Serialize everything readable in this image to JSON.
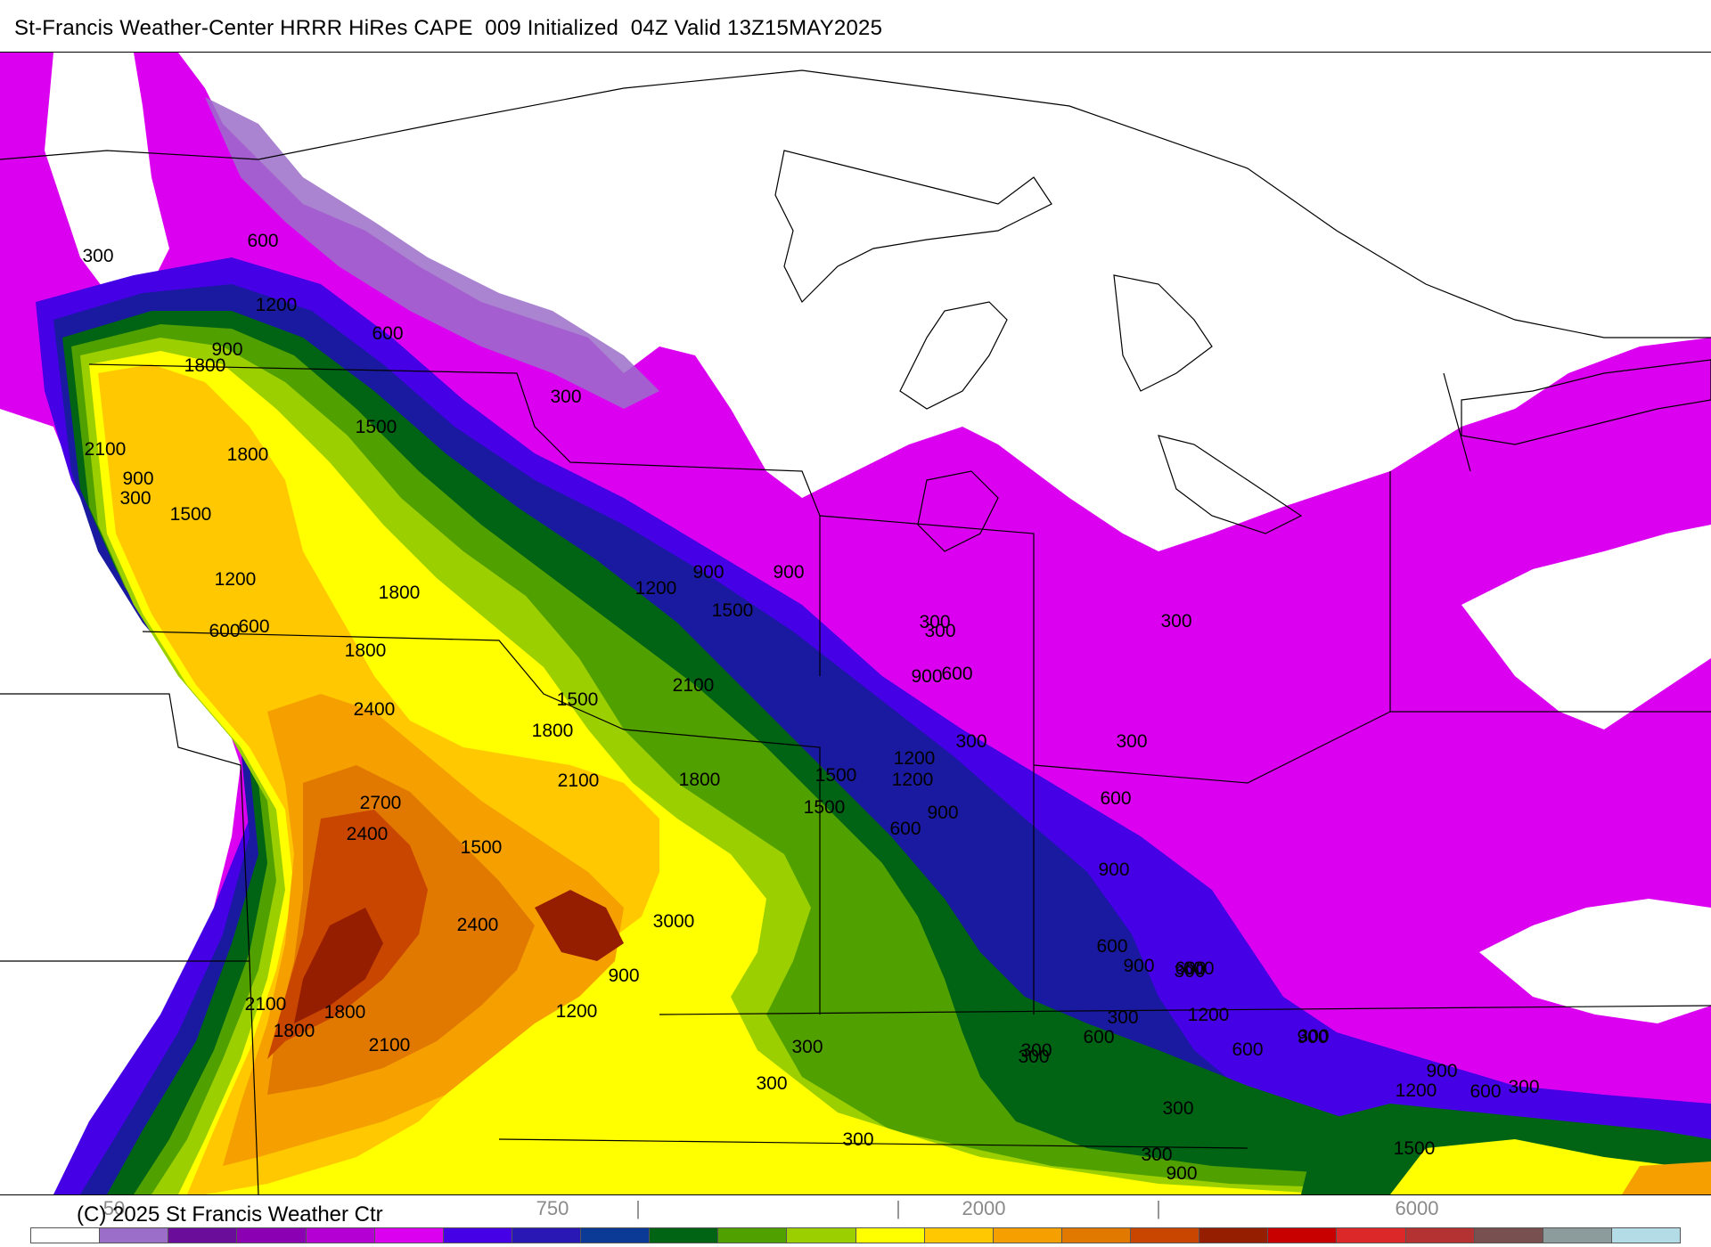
{
  "title": "St-Francis Weather-Center HRRR HiRes CAPE  009 Initialized  04Z Valid 13Z15MAY2025",
  "copyright": "(C) 2025 St Francis Weather Ctr",
  "colorbar": {
    "colors": [
      "#ffffff",
      "#9b6fc9",
      "#6a0d9a",
      "#8c00b4",
      "#b400d2",
      "#dc00f0",
      "#4500e6",
      "#2a18b4",
      "#0a3a96",
      "#006414",
      "#50a000",
      "#9ccf00",
      "#ffff00",
      "#ffc800",
      "#f5a000",
      "#e17800",
      "#c84600",
      "#961e00",
      "#c80000",
      "#dc2828",
      "#b43232",
      "#785050",
      "#8c9c9c",
      "#b4dce6"
    ],
    "tick_labels": [
      {
        "text": "50"
      },
      {
        "text": "750"
      },
      {
        "text": "|"
      },
      {
        "text": "|"
      },
      {
        "text": "2000"
      },
      {
        "text": "|"
      },
      {
        "text": "6000"
      }
    ]
  },
  "map": {
    "field": "CAPE",
    "contour_labels": [
      "300",
      "600",
      "1200",
      "900",
      "1800",
      "600",
      "300",
      "1500",
      "2100",
      "1800",
      "900",
      "300",
      "1500",
      "1200",
      "900",
      "900",
      "1200",
      "1500",
      "1800",
      "600",
      "1800",
      "1500",
      "2100",
      "1800",
      "2400",
      "2100",
      "1800",
      "1500",
      "1200",
      "900",
      "2700",
      "2400",
      "2400",
      "1500",
      "3000",
      "2100",
      "1800",
      "1800",
      "2100",
      "900",
      "1200",
      "600",
      "600",
      "300",
      "1500",
      "300",
      "300",
      "600",
      "900",
      "1200",
      "300",
      "300",
      "600",
      "900",
      "600",
      "900",
      "300",
      "600",
      "300",
      "600",
      "900",
      "300",
      "600",
      "1200",
      "900",
      "600",
      "1500",
      "300",
      "300",
      "300",
      "300",
      "300",
      "300",
      "900",
      "600",
      "300",
      "1200",
      "300",
      "300"
    ]
  }
}
